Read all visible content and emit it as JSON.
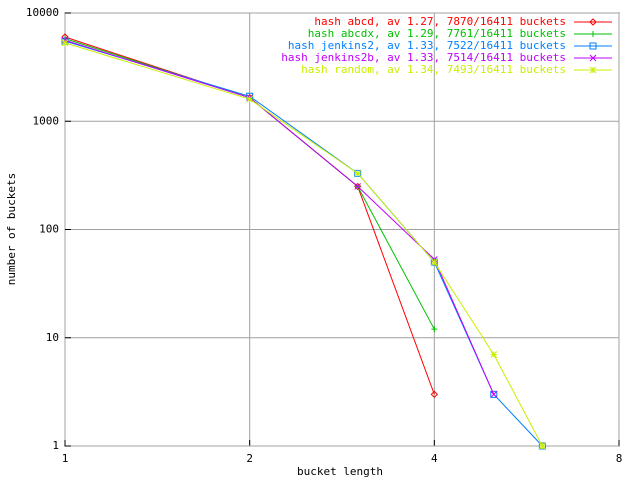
{
  "chart_data": {
    "type": "line",
    "xlabel": "bucket length",
    "ylabel": "number of buckets",
    "xscale": "log",
    "yscale": "log",
    "grid": true,
    "legend": "top-right",
    "xlim": [
      1,
      8
    ],
    "xticks": [
      1,
      2,
      4,
      8
    ],
    "ylim": [
      1,
      10000
    ],
    "yticks": [
      1,
      10,
      100,
      1000,
      10000
    ],
    "x": [
      1,
      2,
      3,
      4,
      5,
      6
    ],
    "series": [
      {
        "name": "hash abcd, av 1.27, 7870/16411 buckets",
        "color": "#ff0000",
        "values": [
          6000,
          1650,
          250,
          3,
          null,
          null
        ]
      },
      {
        "name": "hash abcdx, av 1.29, 7761/16411 buckets",
        "color": "#00c000",
        "values": [
          5800,
          1650,
          250,
          12,
          null,
          null
        ]
      },
      {
        "name": "hash jenkins2, av 1.33, 7522/16411 buckets",
        "color": "#0080ff",
        "values": [
          5500,
          1700,
          330,
          50,
          3,
          1
        ]
      },
      {
        "name": "hash jenkins2b, av 1.33, 7514/16411 buckets",
        "color": "#c000ff",
        "values": [
          5600,
          1650,
          250,
          53,
          3,
          null
        ]
      },
      {
        "name": "hash random, av 1.34, 7493/16411 buckets",
        "color": "#c8f000",
        "values": [
          5300,
          1600,
          330,
          50,
          7,
          1
        ]
      }
    ]
  }
}
